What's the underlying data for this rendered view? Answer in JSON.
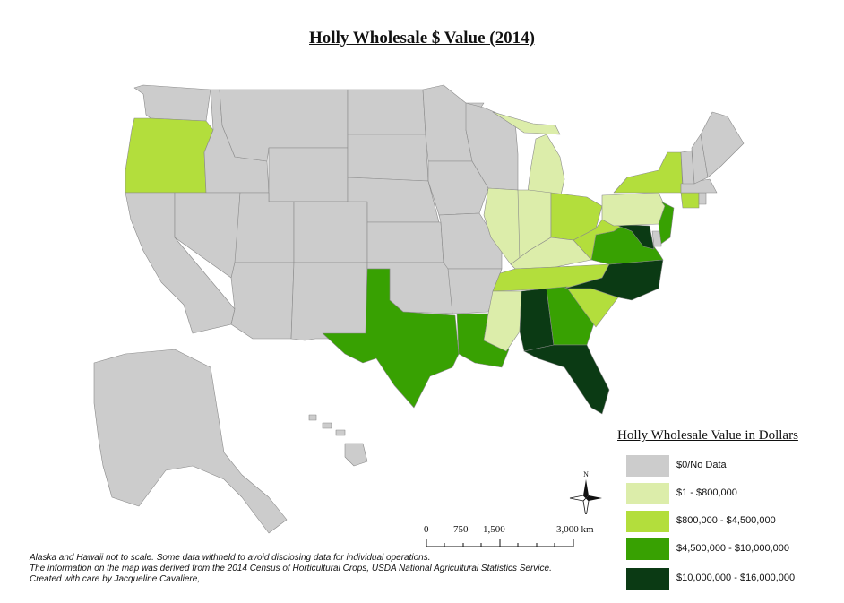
{
  "title": "Holly Wholesale $ Value (2014)",
  "legend": {
    "title": "Holly Wholesale Value in Dollars",
    "classes": [
      {
        "label": "$0/No Data",
        "color": "#cccccc"
      },
      {
        "label": "$1 - $800,000",
        "color": "#dcedaa"
      },
      {
        "label": "$800,000 - $4,500,000",
        "color": "#b3de3c"
      },
      {
        "label": "$4,500,000 - $10,000,000",
        "color": "#38a102"
      },
      {
        "label": "$10,000,000 - $16,000,000",
        "color": "#0b3a14"
      }
    ]
  },
  "scale_bar": {
    "labels": [
      "0",
      "750",
      "1,500",
      "3,000 km"
    ]
  },
  "north_arrow": {
    "label": "N"
  },
  "notes": [
    "Alaska and Hawaii not to scale. Some data withheld to avoid disclosing data for individual operations.",
    "The information on the map was derived from the 2014 Census of Horticultural Crops, USDA National Agricultural Statistics Service.",
    "Created with care by Jacqueline Cavaliere,"
  ],
  "states": [
    {
      "name": "Washington",
      "class": 0
    },
    {
      "name": "Oregon",
      "class": 2
    },
    {
      "name": "California",
      "class": 0
    },
    {
      "name": "Idaho",
      "class": 0
    },
    {
      "name": "Nevada",
      "class": 0
    },
    {
      "name": "Montana",
      "class": 0
    },
    {
      "name": "Wyoming",
      "class": 0
    },
    {
      "name": "Utah",
      "class": 0
    },
    {
      "name": "Arizona",
      "class": 0
    },
    {
      "name": "Colorado",
      "class": 0
    },
    {
      "name": "New Mexico",
      "class": 0
    },
    {
      "name": "North Dakota",
      "class": 0
    },
    {
      "name": "South Dakota",
      "class": 0
    },
    {
      "name": "Nebraska",
      "class": 0
    },
    {
      "name": "Kansas",
      "class": 0
    },
    {
      "name": "Oklahoma",
      "class": 0
    },
    {
      "name": "Texas",
      "class": 3
    },
    {
      "name": "Minnesota",
      "class": 0
    },
    {
      "name": "Iowa",
      "class": 0
    },
    {
      "name": "Missouri",
      "class": 0
    },
    {
      "name": "Arkansas",
      "class": 0
    },
    {
      "name": "Louisiana",
      "class": 3
    },
    {
      "name": "Wisconsin",
      "class": 0
    },
    {
      "name": "Michigan",
      "class": 1
    },
    {
      "name": "Illinois",
      "class": 1
    },
    {
      "name": "Indiana",
      "class": 1
    },
    {
      "name": "Ohio",
      "class": 2
    },
    {
      "name": "Kentucky",
      "class": 1
    },
    {
      "name": "Tennessee",
      "class": 2
    },
    {
      "name": "Mississippi",
      "class": 1
    },
    {
      "name": "Alabama",
      "class": 4
    },
    {
      "name": "Georgia",
      "class": 3
    },
    {
      "name": "Florida",
      "class": 4
    },
    {
      "name": "South Carolina",
      "class": 2
    },
    {
      "name": "North Carolina",
      "class": 4
    },
    {
      "name": "Virginia",
      "class": 3
    },
    {
      "name": "West Virginia",
      "class": 2
    },
    {
      "name": "Maryland",
      "class": 4
    },
    {
      "name": "Delaware",
      "class": 0
    },
    {
      "name": "Pennsylvania",
      "class": 1
    },
    {
      "name": "New Jersey",
      "class": 3
    },
    {
      "name": "New York",
      "class": 2
    },
    {
      "name": "Connecticut",
      "class": 2
    },
    {
      "name": "Rhode Island",
      "class": 0
    },
    {
      "name": "Massachusetts",
      "class": 0
    },
    {
      "name": "Vermont",
      "class": 0
    },
    {
      "name": "New Hampshire",
      "class": 0
    },
    {
      "name": "Maine",
      "class": 0
    },
    {
      "name": "Alaska",
      "class": 0
    },
    {
      "name": "Hawaii",
      "class": 0
    }
  ]
}
